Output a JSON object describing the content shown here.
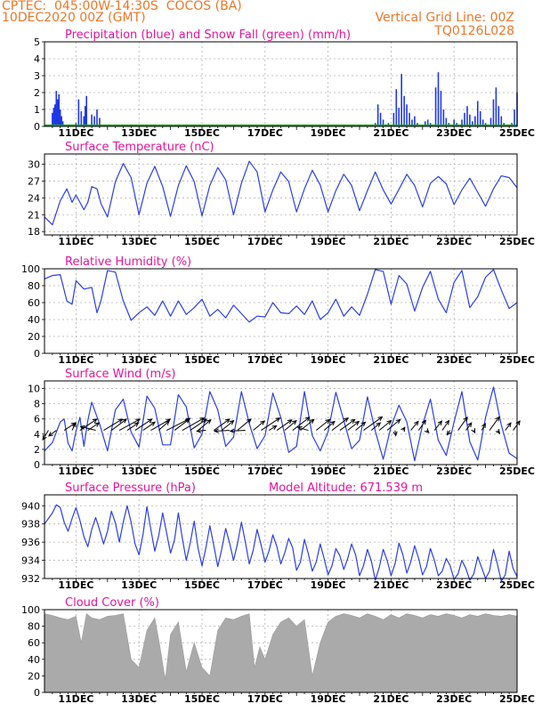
{
  "header": {
    "line1": "CPTEC:  045:00W-14:30S  COCOS (BA)",
    "line2": "10DEC2020 00Z (GMT)",
    "grid_note": "Vertical Grid Line: 00Z",
    "code": "TQ0126L028"
  },
  "colors": {
    "header": "#e8782a",
    "title": "#e0169b",
    "line": "#2b3fe0",
    "rain": "#1f38e6",
    "snow": "#19a019",
    "cloud": "#aaaaaa"
  },
  "chart_data": [
    {
      "type": "bar",
      "title": "Precipitation (blue) and Snow Fall (green) (mm/h)",
      "ylim": [
        0,
        5
      ],
      "yticks": [
        "0",
        "1",
        "2",
        "3",
        "4",
        "5"
      ],
      "xticks": [
        "11DEC",
        "13DEC",
        "15DEC",
        "17DEC",
        "19DEC",
        "21DEC",
        "23DEC",
        "25DEC"
      ],
      "x_hours": [
        6,
        7,
        8,
        9,
        10,
        11,
        12,
        13,
        14,
        24,
        26,
        28,
        30,
        31,
        32,
        36,
        38,
        40,
        42,
        44,
        46,
        252,
        254,
        256,
        258,
        260,
        262,
        266,
        268,
        270,
        272,
        274,
        276,
        278,
        280,
        282,
        284,
        286,
        288,
        290,
        292,
        294,
        296,
        298,
        300,
        302,
        304,
        306,
        308,
        310,
        312,
        314,
        316,
        318,
        320,
        322,
        324,
        326,
        328,
        330,
        332,
        334,
        336,
        338,
        340,
        342,
        344,
        346,
        348,
        350,
        352,
        354,
        356,
        358,
        360
      ],
      "values": [
        0.8,
        1.1,
        1.3,
        2.1,
        1.6,
        1.9,
        1.0,
        0.6,
        0.3,
        0.2,
        1.6,
        0.9,
        0.6,
        1.2,
        1.8,
        0.7,
        0.6,
        1.0,
        0.5,
        0.1,
        0.1,
        0.2,
        1.3,
        0.8,
        0.4,
        0.1,
        0.2,
        0.8,
        2.2,
        1.1,
        3.1,
        1.8,
        1.3,
        0.8,
        0.4,
        0.6,
        0.2,
        0.1,
        0.1,
        0.3,
        0.4,
        0.2,
        0.1,
        2.3,
        3.2,
        2.1,
        1.0,
        0.5,
        0.2,
        0.1,
        0.4,
        0.2,
        0.1,
        0.4,
        0.8,
        1.2,
        0.7,
        0.3,
        0.6,
        1.5,
        0.9,
        0.4,
        0.2,
        0.1,
        0.5,
        1.6,
        2.3,
        1.2,
        0.6,
        0.2,
        0.1,
        0.1,
        0.2,
        1.0,
        2.0
      ],
      "snow_values": [
        0,
        0,
        0,
        0,
        0,
        0,
        0,
        0,
        0,
        0,
        0,
        0,
        0,
        0,
        0,
        0,
        0,
        0,
        0,
        0,
        0,
        0,
        0,
        0,
        0,
        0,
        0,
        0,
        0,
        0,
        0,
        0,
        0,
        0,
        0,
        0,
        0,
        0,
        0,
        0,
        0,
        0,
        0,
        0,
        0,
        0,
        0,
        0,
        0,
        0,
        0,
        0,
        0,
        0,
        0,
        0,
        0,
        0,
        0,
        0,
        0,
        0,
        0,
        0,
        0,
        0,
        0,
        0,
        0,
        0,
        0,
        0,
        0,
        0,
        0
      ]
    },
    {
      "type": "line",
      "title": "Surface Temperature (nC)",
      "ylim": [
        17.4,
        31.8
      ],
      "yticks": [
        "18",
        "21",
        "24",
        "27",
        "30"
      ],
      "xticks": [
        "11DEC",
        "13DEC",
        "15DEC",
        "17DEC",
        "19DEC",
        "21DEC",
        "23DEC",
        "25DEC"
      ],
      "x_hours": [
        0,
        6,
        12,
        17,
        21,
        24,
        30,
        33,
        36,
        40,
        43,
        48,
        54,
        60,
        66,
        72,
        78,
        84,
        90,
        96,
        102,
        108,
        114,
        120,
        126,
        132,
        138,
        144,
        150,
        156,
        162,
        168,
        174,
        180,
        186,
        192,
        198,
        204,
        210,
        216,
        222,
        228,
        234,
        240,
        246,
        252,
        258,
        264,
        270,
        276,
        282,
        288,
        294,
        300,
        306,
        312,
        318,
        324,
        330,
        336,
        342,
        348,
        354,
        360
      ],
      "values": [
        20.6,
        19.2,
        23.5,
        25.6,
        23.2,
        24.5,
        21.9,
        23.2,
        26.0,
        25.6,
        23.0,
        20.6,
        26.9,
        30.1,
        27.6,
        21.0,
        26.6,
        29.6,
        26.0,
        20.7,
        26.2,
        29.7,
        26.9,
        20.8,
        26.2,
        29.4,
        27.2,
        21.0,
        26.6,
        30.5,
        28.6,
        21.5,
        25.4,
        28.6,
        26.9,
        21.5,
        25.6,
        28.9,
        26.3,
        21.5,
        25.3,
        28.2,
        26.2,
        21.7,
        25.3,
        28.6,
        25.4,
        22.9,
        25.5,
        28.2,
        26.2,
        22.4,
        26.6,
        27.8,
        26.5,
        22.8,
        25.4,
        27.5,
        25.0,
        22.5,
        25.6,
        27.9,
        27.6,
        25.8
      ]
    },
    {
      "type": "line",
      "title": "Relative Humidity (%)",
      "ylim": [
        0,
        100
      ],
      "yticks": [
        "0",
        "20",
        "40",
        "60",
        "80",
        "100"
      ],
      "xticks": [
        "11DEC",
        "13DEC",
        "15DEC",
        "17DEC",
        "19DEC",
        "21DEC",
        "23DEC",
        "25DEC"
      ],
      "x_hours": [
        0,
        6,
        12,
        17,
        21,
        24,
        30,
        36,
        40,
        43,
        48,
        54,
        60,
        66,
        72,
        78,
        84,
        90,
        96,
        102,
        108,
        114,
        120,
        126,
        132,
        138,
        144,
        150,
        156,
        162,
        168,
        174,
        180,
        186,
        192,
        198,
        204,
        210,
        216,
        222,
        228,
        234,
        240,
        246,
        252,
        258,
        264,
        270,
        276,
        282,
        288,
        294,
        300,
        306,
        312,
        318,
        324,
        330,
        336,
        342,
        348,
        354,
        360
      ],
      "values": [
        88,
        92,
        93,
        62,
        58,
        86,
        76,
        78,
        48,
        62,
        98,
        96,
        62,
        39,
        48,
        55,
        45,
        62,
        44,
        62,
        46,
        54,
        64,
        44,
        52,
        42,
        57,
        47,
        37,
        44,
        43,
        60,
        48,
        47,
        56,
        46,
        62,
        40,
        48,
        64,
        44,
        55,
        45,
        70,
        99,
        97,
        58,
        92,
        82,
        50,
        78,
        97,
        64,
        48,
        84,
        98,
        54,
        67,
        90,
        99,
        75,
        53,
        60
      ]
    },
    {
      "type": "line",
      "title": "Surface Wind (m/s)",
      "ylim": [
        0,
        11
      ],
      "yticks": [
        "0",
        "2",
        "4",
        "6",
        "8",
        "10"
      ],
      "xticks": [
        "11DEC",
        "13DEC",
        "15DEC",
        "17DEC",
        "19DEC",
        "21DEC",
        "23DEC",
        "25DEC"
      ],
      "x_hours": [
        0,
        6,
        12,
        15,
        18,
        21,
        24,
        27,
        30,
        33,
        36,
        42,
        48,
        54,
        60,
        66,
        72,
        78,
        84,
        90,
        96,
        102,
        108,
        114,
        120,
        126,
        132,
        138,
        144,
        150,
        156,
        162,
        168,
        174,
        180,
        186,
        192,
        198,
        204,
        210,
        216,
        222,
        228,
        234,
        240,
        246,
        252,
        258,
        264,
        270,
        276,
        282,
        288,
        294,
        300,
        306,
        312,
        318,
        324,
        330,
        336,
        342,
        348,
        354,
        360
      ],
      "values": [
        1.8,
        2.9,
        5.6,
        6.0,
        2.8,
        1.8,
        4.4,
        6.2,
        2.4,
        5.8,
        8.2,
        5.3,
        1.8,
        7.2,
        8.6,
        4.3,
        2.3,
        9.0,
        7.4,
        2.6,
        2.6,
        9.2,
        7.6,
        2.2,
        4.0,
        9.6,
        7.2,
        2.4,
        3.6,
        9.6,
        5.4,
        2.1,
        3.8,
        9.4,
        6.2,
        1.6,
        2.4,
        9.6,
        3.8,
        1.8,
        4.3,
        9.5,
        5.8,
        2.1,
        3.2,
        8.9,
        4.4,
        0.7,
        5.0,
        7.8,
        5.6,
        0.5,
        5.2,
        8.6,
        3.2,
        1.2,
        5.6,
        9.6,
        3.0,
        0.6,
        6.2,
        10.2,
        5.2,
        1.5,
        0.8
      ],
      "arrows": {
        "x_hours": [
          3,
          9,
          15,
          21,
          27,
          33,
          39,
          45,
          51,
          57,
          63,
          69,
          75,
          81,
          87,
          93,
          99,
          105,
          111,
          117,
          123,
          129,
          135,
          141,
          147,
          153,
          159,
          165,
          171,
          177,
          183,
          189,
          195,
          201,
          207,
          213,
          219,
          225,
          231,
          237,
          243,
          249,
          255,
          261,
          267,
          273,
          279,
          285,
          291,
          297,
          303,
          309,
          315,
          321,
          327,
          333,
          339,
          345,
          351,
          357
        ],
        "u": [
          -1.5,
          -2.0,
          3.0,
          1.0,
          4.5,
          3.0,
          -4.0,
          5.0,
          4.0,
          5.5,
          3.0,
          4.5,
          3.2,
          5.2,
          2.8,
          6.3,
          4.0,
          5.8,
          4.4,
          3.4,
          -2.4,
          4.2,
          3.2,
          -4.0,
          3.6,
          -4.0,
          3.0,
          5.0,
          2.0,
          4.0,
          3.1,
          4.5,
          3.6,
          -2.8,
          3.6,
          2.8,
          4.3,
          4.0,
          3.0,
          2.6,
          5.0,
          2.4,
          3.2,
          3.5,
          0.2,
          0.5,
          2.0,
          1.9,
          0.6,
          2.0,
          1.8,
          -0.8,
          2.5,
          1.5,
          0.3,
          1.0,
          2.6,
          0.6,
          1.5,
          1.8
        ],
        "v": [
          -2.5,
          -1.5,
          2.0,
          2.0,
          3.0,
          2.0,
          1.0,
          3.0,
          3.0,
          3.0,
          2.0,
          3.0,
          2.2,
          3.0,
          2.5,
          3.2,
          3.0,
          3.3,
          3.0,
          2.8,
          -0.2,
          3.0,
          2.6,
          -0.2,
          3.0,
          -0.2,
          2.5,
          3.3,
          1.2,
          2.8,
          2.6,
          3.5,
          2.9,
          0.8,
          2.9,
          2.4,
          3.3,
          2.9,
          2.4,
          2.2,
          3.6,
          2.0,
          2.6,
          2.9,
          -1.4,
          0.8,
          2.4,
          2.7,
          -0.6,
          2.5,
          2.6,
          -1.2,
          3.5,
          2.0,
          -0.6,
          1.8,
          3.6,
          -0.8,
          2.0,
          2.5
        ]
      }
    },
    {
      "type": "line",
      "title": "Surface Pressure (hPa)",
      "annotation": "Model Altitude: 671.539 m",
      "ylim": [
        932,
        941.2
      ],
      "yticks": [
        "932",
        "934",
        "936",
        "938",
        "940"
      ],
      "xticks": [
        "11DEC",
        "13DEC",
        "15DEC",
        "17DEC",
        "19DEC",
        "21DEC",
        "23DEC",
        "25DEC"
      ],
      "x_hours": [
        0,
        3,
        6,
        9,
        12,
        15,
        18,
        21,
        24,
        27,
        30,
        33,
        36,
        39,
        42,
        45,
        48,
        51,
        54,
        57,
        60,
        63,
        66,
        69,
        72,
        75,
        78,
        81,
        84,
        87,
        90,
        93,
        96,
        99,
        102,
        105,
        108,
        111,
        114,
        117,
        120,
        123,
        126,
        129,
        132,
        135,
        138,
        141,
        144,
        147,
        150,
        153,
        156,
        159,
        162,
        165,
        168,
        171,
        174,
        177,
        180,
        183,
        186,
        189,
        192,
        195,
        198,
        201,
        204,
        207,
        210,
        213,
        216,
        219,
        222,
        225,
        228,
        231,
        234,
        237,
        240,
        243,
        246,
        249,
        252,
        255,
        258,
        261,
        264,
        267,
        270,
        273,
        276,
        279,
        282,
        285,
        288,
        291,
        294,
        297,
        300,
        303,
        306,
        309,
        312,
        315,
        318,
        321,
        324,
        327,
        330,
        333,
        336,
        339,
        342,
        345,
        348,
        351,
        354,
        357,
        360
      ],
      "values": [
        938.0,
        938.6,
        939.2,
        940.1,
        939.8,
        938.2,
        937.2,
        938.6,
        939.8,
        938.4,
        936.6,
        935.5,
        937.4,
        938.7,
        937.3,
        935.8,
        937.2,
        939.4,
        938.1,
        936.0,
        938.2,
        940.0,
        938.2,
        935.8,
        934.6,
        936.8,
        939.9,
        937.4,
        935.0,
        936.7,
        939.2,
        937.0,
        934.8,
        936.2,
        939.2,
        936.4,
        934.0,
        935.9,
        938.3,
        935.3,
        933.4,
        935.4,
        937.8,
        935.6,
        933.3,
        935.2,
        937.5,
        935.9,
        934.0,
        935.8,
        938.2,
        936.0,
        933.6,
        935.1,
        937.4,
        935.7,
        933.8,
        935.0,
        936.8,
        935.5,
        933.6,
        934.8,
        936.4,
        935.4,
        932.9,
        933.8,
        936.3,
        934.7,
        932.8,
        933.8,
        935.8,
        934.2,
        932.4,
        933.4,
        935.3,
        934.5,
        933.0,
        934.2,
        935.8,
        934.6,
        932.3,
        933.4,
        935.2,
        933.9,
        931.8,
        933.2,
        935.2,
        934.0,
        932.3,
        933.6,
        935.9,
        934.6,
        932.6,
        933.8,
        935.6,
        934.2,
        932.4,
        933.3,
        935.3,
        934.0,
        932.3,
        932.8,
        934.2,
        933.4,
        931.9,
        932.5,
        934.0,
        933.1,
        931.8,
        932.5,
        934.4,
        933.2,
        932.0,
        932.8,
        935.2,
        933.6,
        931.7,
        932.4,
        935.0,
        933.1,
        932.2
      ],
      "ylabel": ""
    },
    {
      "type": "area",
      "title": "Cloud Cover (%)",
      "ylim": [
        0,
        100
      ],
      "yticks": [
        "0",
        "20",
        "40",
        "60",
        "80",
        "100"
      ],
      "xticks": [
        "11DEC",
        "13DEC",
        "15DEC",
        "17DEC",
        "19DEC",
        "21DEC",
        "23DEC",
        "25DEC"
      ],
      "x_hours": [
        0,
        6,
        12,
        18,
        24,
        28,
        32,
        36,
        42,
        48,
        54,
        60,
        66,
        72,
        78,
        84,
        88,
        92,
        96,
        102,
        108,
        114,
        120,
        126,
        132,
        138,
        144,
        150,
        156,
        160,
        164,
        168,
        174,
        180,
        186,
        192,
        198,
        204,
        210,
        216,
        222,
        228,
        234,
        240,
        246,
        252,
        258,
        264,
        270,
        276,
        282,
        288,
        294,
        300,
        306,
        312,
        318,
        324,
        330,
        336,
        342,
        348,
        354,
        360
      ],
      "values": [
        95,
        93,
        90,
        88,
        92,
        60,
        95,
        90,
        88,
        92,
        93,
        95,
        40,
        30,
        75,
        90,
        55,
        15,
        70,
        85,
        25,
        60,
        30,
        20,
        75,
        90,
        88,
        92,
        95,
        30,
        55,
        40,
        70,
        85,
        90,
        80,
        88,
        20,
        60,
        85,
        92,
        95,
        93,
        90,
        95,
        92,
        88,
        94,
        90,
        95,
        93,
        90,
        94,
        92,
        95,
        93,
        90,
        94,
        92,
        95,
        93,
        92,
        94,
        92
      ]
    }
  ]
}
